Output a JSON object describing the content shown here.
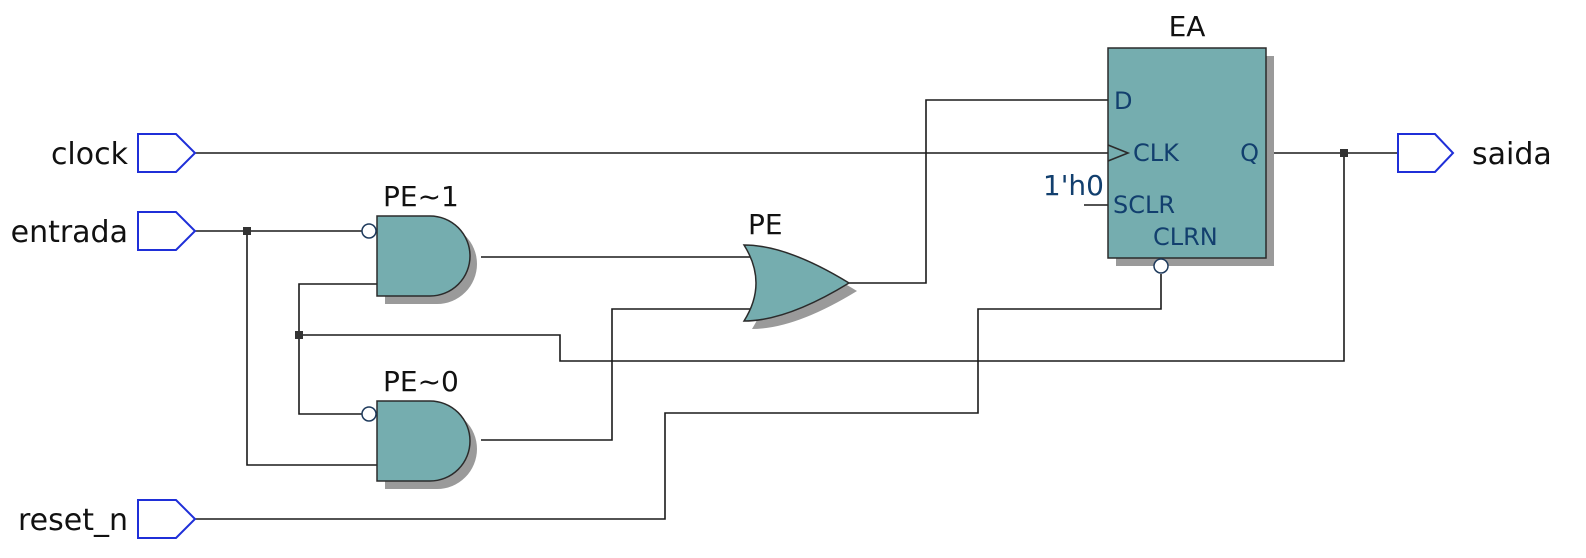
{
  "ports": {
    "clock": "clock",
    "entrada": "entrada",
    "reset_n": "reset_n",
    "saida": "saida"
  },
  "instances": {
    "and_top": "PE~1",
    "and_bottom": "PE~0",
    "or_gate": "PE",
    "register": "EA"
  },
  "register_pins": {
    "d": "D",
    "clk": "CLK",
    "sclr": "SCLR",
    "clrn": "CLRN",
    "q": "Q"
  },
  "constants": {
    "sclr_value": "1'h0"
  },
  "colors": {
    "gate_fill": "#75adaf",
    "port_outline": "#1f2fd8",
    "pin_text": "#123f6e"
  }
}
